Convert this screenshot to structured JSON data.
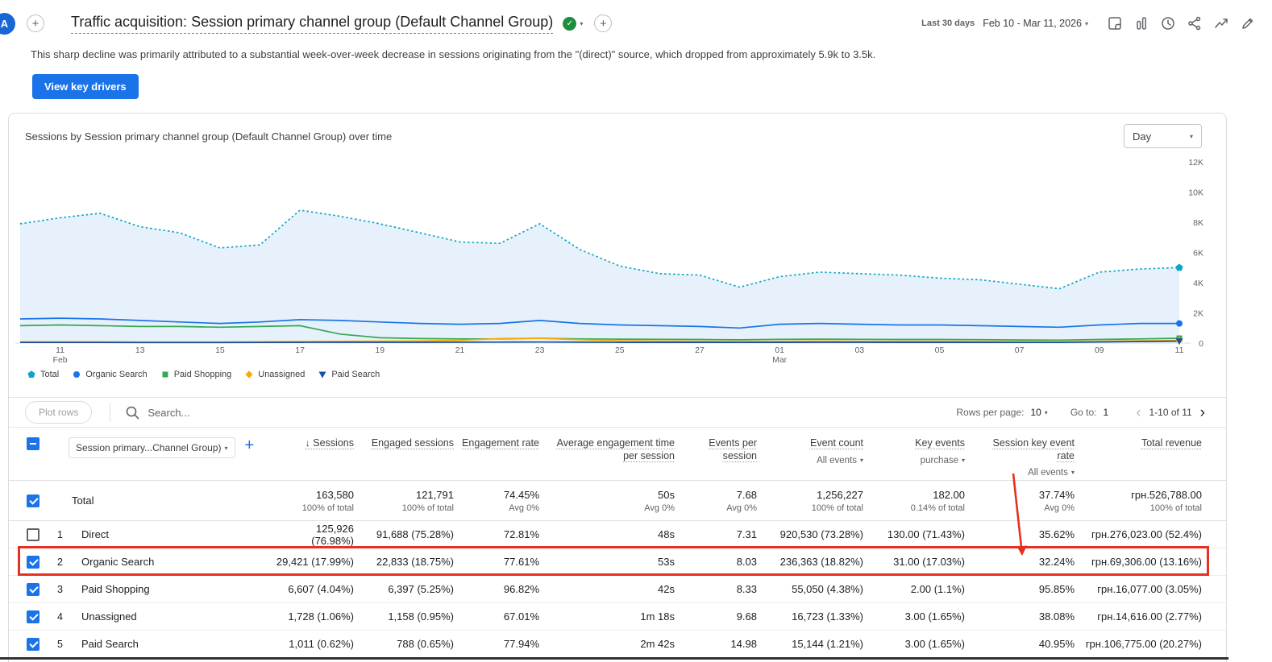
{
  "colors": {
    "accent_blue": "#1a73e8",
    "annotation_red": "#e53022",
    "badge_green": "#1e8e3e"
  },
  "topbar": {
    "avatar_letter": "A",
    "title": "Traffic acquisition: Session primary channel group (Default Channel Group)",
    "date_range_label": "Last 30 days",
    "date_range_value": "Feb 10 - Mar 11, 2026",
    "icons": [
      "plus-icon",
      "note-icon",
      "comparison-icon",
      "clock-icon",
      "share-icon",
      "insights-icon",
      "edit-icon"
    ]
  },
  "insight": {
    "text": "This sharp decline was primarily attributed to a substantial week-over-week decrease in sessions originating from the \"(direct)\" source, which dropped from approximately 5.9k to 3.5k.",
    "cta_label": "View key drivers"
  },
  "chart": {
    "title": "Sessions by Session primary channel group (Default Channel Group) over time",
    "granularity_value": "Day"
  },
  "chart_data": {
    "type": "line",
    "title": "Sessions by Session primary channel group (Default Channel Group) over time",
    "xlabel": "",
    "ylabel": "Sessions",
    "ylim": [
      0,
      12000
    ],
    "y_ticks": [
      "0",
      "2K",
      "4K",
      "6K",
      "8K",
      "10K",
      "12K"
    ],
    "grid": false,
    "legend_position": "bottom",
    "x": [
      "Feb 10",
      "Feb 11",
      "Feb 12",
      "Feb 13",
      "Feb 14",
      "Feb 15",
      "Feb 16",
      "Feb 17",
      "Feb 18",
      "Feb 19",
      "Feb 20",
      "Feb 21",
      "Feb 22",
      "Feb 23",
      "Feb 24",
      "Feb 25",
      "Feb 26",
      "Feb 27",
      "Feb 28",
      "Mar 01",
      "Mar 02",
      "Mar 03",
      "Mar 04",
      "Mar 05",
      "Mar 06",
      "Mar 07",
      "Mar 08",
      "Mar 09",
      "Mar 10",
      "Mar 11"
    ],
    "x_tick_indices": [
      1,
      3,
      5,
      7,
      9,
      11,
      13,
      15,
      17,
      19,
      21,
      23,
      25,
      27,
      29
    ],
    "x_tick_labels": [
      [
        "11",
        "Feb"
      ],
      "13",
      "15",
      "17",
      "19",
      "21",
      "23",
      "25",
      "27",
      [
        "01",
        "Mar"
      ],
      "03",
      "05",
      "07",
      "09",
      "11"
    ],
    "series": [
      {
        "name": "Total",
        "style": "dotted",
        "marker": "pentagon",
        "color": "#0ba6c4",
        "fill": "#e7f1fb",
        "values": [
          7900,
          8300,
          8600,
          7700,
          7300,
          6300,
          6500,
          8800,
          8400,
          7900,
          7300,
          6700,
          6600,
          7900,
          6200,
          5100,
          4600,
          4500,
          3700,
          4400,
          4700,
          4600,
          4500,
          4300,
          4200,
          3900,
          3600,
          4700,
          4900,
          5000
        ]
      },
      {
        "name": "Organic Search",
        "style": "solid",
        "marker": "circle",
        "color": "#1a73e8",
        "values": [
          1600,
          1650,
          1600,
          1500,
          1400,
          1300,
          1400,
          1550,
          1500,
          1400,
          1300,
          1250,
          1300,
          1500,
          1300,
          1200,
          1150,
          1100,
          1000,
          1250,
          1300,
          1250,
          1200,
          1200,
          1150,
          1100,
          1050,
          1200,
          1300,
          1300
        ]
      },
      {
        "name": "Paid Shopping",
        "style": "solid",
        "marker": "square",
        "color": "#34a853",
        "values": [
          1150,
          1200,
          1150,
          1100,
          1100,
          1050,
          1100,
          1150,
          600,
          350,
          300,
          280,
          280,
          320,
          280,
          260,
          250,
          240,
          220,
          250,
          260,
          250,
          240,
          240,
          230,
          210,
          200,
          240,
          280,
          320
        ]
      },
      {
        "name": "Unassigned",
        "style": "solid",
        "marker": "diamond",
        "color": "#f9ab00",
        "values": [
          80,
          80,
          80,
          70,
          70,
          70,
          80,
          100,
          120,
          130,
          140,
          180,
          300,
          320,
          220,
          150,
          130,
          120,
          100,
          120,
          130,
          120,
          115,
          110,
          105,
          95,
          90,
          120,
          150,
          180
        ]
      },
      {
        "name": "Paid Search",
        "style": "solid",
        "marker": "triangle",
        "color": "#174ea6",
        "values": [
          45,
          45,
          45,
          40,
          40,
          40,
          45,
          50,
          55,
          55,
          55,
          60,
          65,
          70,
          60,
          50,
          48,
          46,
          42,
          50,
          52,
          52,
          50,
          50,
          48,
          45,
          42,
          70,
          100,
          130
        ]
      }
    ]
  },
  "table": {
    "toolbar": {
      "plot_rows_label": "Plot rows",
      "search_placeholder": "Search...",
      "rows_per_page_label": "Rows per page:",
      "rows_per_page_value": "10",
      "go_to_label": "Go to:",
      "go_to_value": "1",
      "pagination_range": "1-10 of 11"
    },
    "dimension_selector": "Session primary...Channel Group)",
    "columns": [
      {
        "label": "Sessions",
        "sorted": true
      },
      {
        "label": "Engaged sessions"
      },
      {
        "label": "Engagement rate"
      },
      {
        "label": "Average engagement time per session"
      },
      {
        "label": "Events per session"
      },
      {
        "label": "Event count",
        "filter": "All events"
      },
      {
        "label": "Key events",
        "filter": "purchase"
      },
      {
        "label": "Session key event rate",
        "filter": "All events"
      },
      {
        "label": "Total revenue"
      }
    ],
    "total_row": {
      "label": "Total",
      "checked": true,
      "values": [
        "163,580",
        "121,791",
        "74.45%",
        "50s",
        "7.68",
        "1,256,227",
        "182.00",
        "37.74%",
        "грн.526,788.00"
      ],
      "subvalues": [
        "100% of total",
        "100% of total",
        "Avg 0%",
        "Avg 0%",
        "Avg 0%",
        "100% of total",
        "0.14% of total",
        "Avg 0%",
        "100% of total"
      ]
    },
    "rows": [
      {
        "num": "1",
        "name": "Direct",
        "checked": false,
        "values": [
          "125,926 (76.98%)",
          "91,688 (75.28%)",
          "72.81%",
          "48s",
          "7.31",
          "920,530 (73.28%)",
          "130.00 (71.43%)",
          "35.62%",
          "грн.276,023.00 (52.4%)"
        ]
      },
      {
        "num": "2",
        "name": "Organic Search",
        "checked": true,
        "highlighted": true,
        "values": [
          "29,421 (17.99%)",
          "22,833 (18.75%)",
          "77.61%",
          "53s",
          "8.03",
          "236,363 (18.82%)",
          "31.00 (17.03%)",
          "32.24%",
          "грн.69,306.00 (13.16%)"
        ]
      },
      {
        "num": "3",
        "name": "Paid Shopping",
        "checked": true,
        "values": [
          "6,607 (4.04%)",
          "6,397 (5.25%)",
          "96.82%",
          "42s",
          "8.33",
          "55,050 (4.38%)",
          "2.00 (1.1%)",
          "95.85%",
          "грн.16,077.00 (3.05%)"
        ]
      },
      {
        "num": "4",
        "name": "Unassigned",
        "checked": true,
        "values": [
          "1,728 (1.06%)",
          "1,158 (0.95%)",
          "67.01%",
          "1m 18s",
          "9.68",
          "16,723 (1.33%)",
          "3.00 (1.65%)",
          "38.08%",
          "грн.14,616.00 (2.77%)"
        ]
      },
      {
        "num": "5",
        "name": "Paid Search",
        "checked": true,
        "values": [
          "1,011 (0.62%)",
          "788 (0.65%)",
          "77.94%",
          "2m 42s",
          "14.98",
          "15,144 (1.21%)",
          "3.00 (1.65%)",
          "40.95%",
          "грн.106,775.00 (20.27%)"
        ]
      }
    ]
  }
}
